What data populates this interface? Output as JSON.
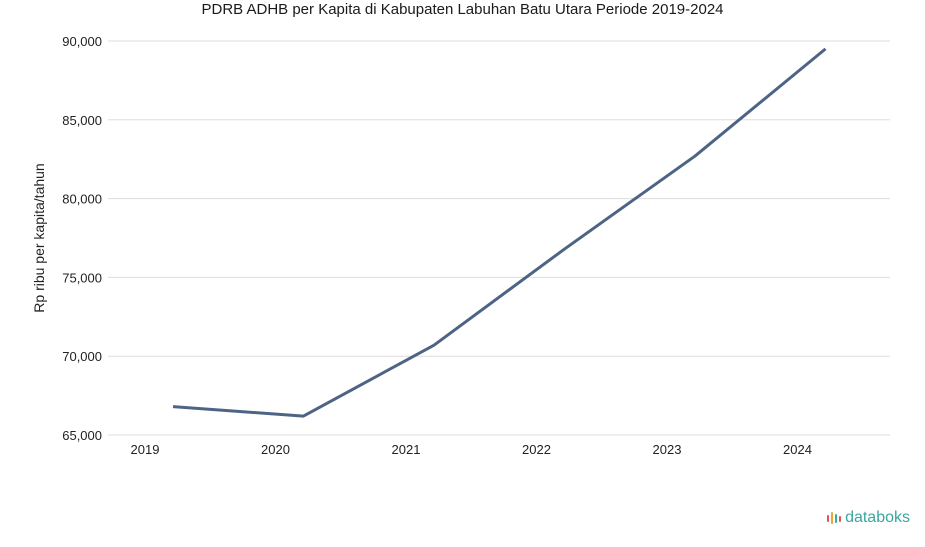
{
  "chart_data": {
    "type": "line",
    "title": "PDRB ADHB per Kapita di Kabupaten Labuhan Batu Utara Periode 2019-2024",
    "xlabel": "",
    "ylabel": "Rp ribu per kapita/tahun",
    "categories": [
      "2019",
      "2020",
      "2021",
      "2022",
      "2023",
      "2024"
    ],
    "series": [
      {
        "values": [
          66800,
          66200,
          70700,
          76800,
          82700,
          89500
        ]
      }
    ],
    "ylim": [
      65000,
      90000
    ],
    "yticks": [
      65000,
      70000,
      75000,
      80000,
      85000,
      90000
    ],
    "ytick_labels": [
      "65,000",
      "70,000",
      "75,000",
      "80,000",
      "85,000",
      "90,000"
    ],
    "grid": true,
    "legend": "none",
    "line_color": "#4d6484"
  },
  "brand": {
    "logo_text": "databoks",
    "logo_text_color": "#3aa7a0",
    "logo_icon_colors": [
      "#e8543f",
      "#f0a33a",
      "#3aa7a0"
    ]
  }
}
